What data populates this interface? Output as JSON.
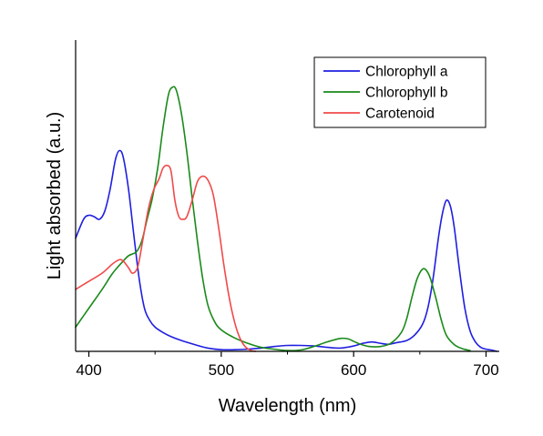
{
  "chart_data": {
    "type": "line",
    "xlabel": "Wavelength (nm)",
    "ylabel": "Light absorbed (a.u.)",
    "xlim": [
      390,
      710
    ],
    "ylim": [
      0,
      1
    ],
    "xticks": [
      400,
      500,
      600,
      700
    ],
    "y_tick_labels": false,
    "grid": false,
    "legend_position": "top-right",
    "series": [
      {
        "name": "Chlorophyll a",
        "color": "#1f1fe0",
        "x": [
          390,
          396,
          400,
          404,
          408,
          412,
          416,
          420,
          423,
          426,
          430,
          434,
          438,
          442,
          446,
          450,
          456,
          462,
          470,
          480,
          490,
          500,
          510,
          520,
          530,
          540,
          550,
          560,
          570,
          580,
          590,
          600,
          607,
          614,
          620,
          626,
          632,
          640,
          646,
          652,
          656,
          660,
          664,
          667,
          670,
          673,
          676,
          680,
          684,
          688,
          692,
          696,
          700,
          704,
          708
        ],
        "y": [
          0.42,
          0.49,
          0.505,
          0.5,
          0.49,
          0.52,
          0.6,
          0.71,
          0.745,
          0.72,
          0.6,
          0.43,
          0.27,
          0.16,
          0.115,
          0.09,
          0.07,
          0.055,
          0.04,
          0.025,
          0.012,
          0.006,
          0.006,
          0.008,
          0.012,
          0.018,
          0.022,
          0.022,
          0.02,
          0.015,
          0.012,
          0.02,
          0.03,
          0.035,
          0.03,
          0.026,
          0.032,
          0.04,
          0.06,
          0.1,
          0.16,
          0.27,
          0.42,
          0.51,
          0.56,
          0.54,
          0.46,
          0.3,
          0.16,
          0.075,
          0.035,
          0.015,
          0.008,
          0.005,
          0.0
        ]
      },
      {
        "name": "Chlorophyll b",
        "color": "#1a8a1a",
        "x": [
          390,
          400,
          410,
          418,
          425,
          430,
          436,
          440,
          444,
          448,
          452,
          456,
          460,
          463,
          466,
          470,
          474,
          478,
          482,
          486,
          490,
          495,
          500,
          510,
          520,
          530,
          540,
          550,
          560,
          570,
          580,
          590,
          596,
          600,
          606,
          612,
          620,
          628,
          636,
          640,
          644,
          648,
          652,
          655,
          658,
          662,
          666,
          670,
          676,
          682,
          688
        ],
        "y": [
          0.09,
          0.16,
          0.23,
          0.29,
          0.33,
          0.355,
          0.37,
          0.41,
          0.49,
          0.57,
          0.68,
          0.83,
          0.95,
          0.98,
          0.97,
          0.88,
          0.74,
          0.57,
          0.41,
          0.27,
          0.17,
          0.11,
          0.08,
          0.05,
          0.03,
          0.015,
          0.008,
          0.003,
          0.005,
          0.018,
          0.035,
          0.048,
          0.046,
          0.037,
          0.025,
          0.018,
          0.018,
          0.03,
          0.07,
          0.12,
          0.2,
          0.27,
          0.305,
          0.3,
          0.27,
          0.2,
          0.12,
          0.06,
          0.025,
          0.01,
          0.003
        ]
      },
      {
        "name": "Carotenoid",
        "color": "#f04a4a",
        "x": [
          390,
          400,
          410,
          418,
          423,
          426,
          430,
          433,
          437,
          441,
          445,
          449,
          453,
          456,
          459,
          462,
          465,
          468,
          471,
          474,
          478,
          482,
          486,
          490,
          494,
          498,
          502,
          506,
          510,
          514,
          518,
          522,
          526
        ],
        "y": [
          0.23,
          0.26,
          0.29,
          0.325,
          0.34,
          0.335,
          0.31,
          0.29,
          0.315,
          0.42,
          0.53,
          0.6,
          0.64,
          0.68,
          0.69,
          0.67,
          0.56,
          0.5,
          0.49,
          0.5,
          0.56,
          0.63,
          0.65,
          0.635,
          0.58,
          0.46,
          0.32,
          0.2,
          0.11,
          0.05,
          0.018,
          0.004,
          0.0
        ]
      }
    ]
  }
}
